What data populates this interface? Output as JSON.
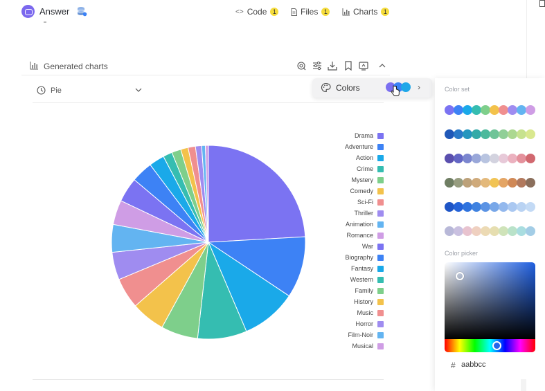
{
  "app": {
    "name": "Answer"
  },
  "tabs": [
    {
      "label": "Code",
      "badge": "1"
    },
    {
      "label": "Files",
      "badge": "1"
    },
    {
      "label": "Charts",
      "badge": "1"
    }
  ],
  "section": {
    "title": "Generated charts"
  },
  "chart_type": {
    "selected": "Pie"
  },
  "colors_button": {
    "label": "Colors",
    "preview_colors": [
      "#7b6ff0",
      "#3b82f6",
      "#1ea7e8"
    ]
  },
  "color_panel": {
    "color_set_label": "Color set",
    "color_picker_label": "Color picker",
    "hex_prefix": "#",
    "hex_value": "aabbcc",
    "color_sets": [
      [
        "#7b73f2",
        "#3d82f5",
        "#1aa9e9",
        "#35bdb1",
        "#7ecf8b",
        "#f3c24b",
        "#f08f8f",
        "#9f8cf0",
        "#63b4f1",
        "#cf9de5"
      ],
      [
        "#2058b8",
        "#2a79c8",
        "#2596be",
        "#33aaa8",
        "#4db99c",
        "#6fc498",
        "#90cf97",
        "#acd890",
        "#c7e28f",
        "#d9e88f"
      ],
      [
        "#5a4fae",
        "#6366c4",
        "#7b86cf",
        "#99a7d9",
        "#b8c4e0",
        "#d3d3df",
        "#e7c9d8",
        "#ebb1bf",
        "#e4919c",
        "#d1686f"
      ],
      [
        "#6f7e63",
        "#979d80",
        "#bca17a",
        "#cfaa7b",
        "#e3b97c",
        "#f1c455",
        "#e4a565",
        "#d08957",
        "#b27a5e",
        "#8b6f5c"
      ],
      [
        "#1f55c6",
        "#2563d8",
        "#2f73de",
        "#3f82e0",
        "#5b93e4",
        "#78a7e8",
        "#93b8ed",
        "#aac8f1",
        "#b9d3f3",
        "#c3daf5"
      ],
      [
        "#b8b8d8",
        "#c9c0e0",
        "#e8c3cf",
        "#efd0c0",
        "#ecdab4",
        "#e6deb0",
        "#cfe3b9",
        "#b9e2c9",
        "#a9dde0",
        "#a3cde6"
      ]
    ]
  },
  "chart_data": {
    "type": "pie",
    "categories": [
      "Drama",
      "Adventure",
      "Action",
      "Crime",
      "Mystery",
      "Comedy",
      "Sci-Fi",
      "Thriller",
      "Animation",
      "Romance",
      "War",
      "Biography",
      "Fantasy",
      "Western",
      "Family",
      "History",
      "Music",
      "Horror",
      "Film-Noir",
      "Musical"
    ],
    "values": [
      23.5,
      10,
      9,
      8,
      6,
      5.5,
      5,
      4.5,
      4.5,
      4,
      4,
      3.5,
      2.5,
      1.5,
      1.5,
      1.2,
      1.2,
      1,
      0.6,
      0.5
    ],
    "colors": [
      "#7b73f2",
      "#3d82f5",
      "#1aa9e9",
      "#35bdb1",
      "#7ecf8b",
      "#f3c24b",
      "#f08f8f",
      "#9f8cf0",
      "#63b4f1",
      "#cf9de5",
      "#7b73f2",
      "#3d82f5",
      "#1aa9e9",
      "#35bdb1",
      "#7ecf8b",
      "#f3c24b",
      "#f08f8f",
      "#9f8cf0",
      "#63b4f1",
      "#cf9de5"
    ],
    "legend_position": "right"
  }
}
